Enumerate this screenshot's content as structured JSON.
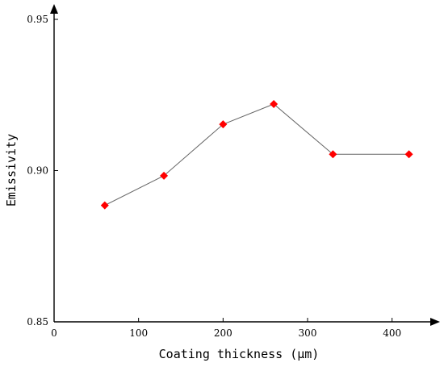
{
  "chart_data": {
    "type": "line",
    "title": "",
    "xlabel": "Coating thickness (μm)",
    "ylabel": "Emissivity",
    "xlim": [
      0,
      450
    ],
    "ylim": [
      0.85,
      0.95
    ],
    "x_ticks": [
      "0",
      "100",
      "200",
      "300",
      "400"
    ],
    "x_tick_values": [
      0,
      100,
      200,
      300,
      400
    ],
    "y_ticks": [
      "0.85",
      "0.90",
      "0.95"
    ],
    "y_tick_values": [
      0.85,
      0.9,
      0.95
    ],
    "grid": false,
    "marker": "diamond",
    "colors": {
      "marker": "#ff0000",
      "line": "#666666",
      "axis": "#000000"
    },
    "series": [
      {
        "x": [
          60,
          130,
          200,
          260,
          330,
          420
        ],
        "y": [
          0.8885,
          0.8983,
          0.9153,
          0.922,
          0.9054,
          0.9054
        ]
      }
    ]
  }
}
